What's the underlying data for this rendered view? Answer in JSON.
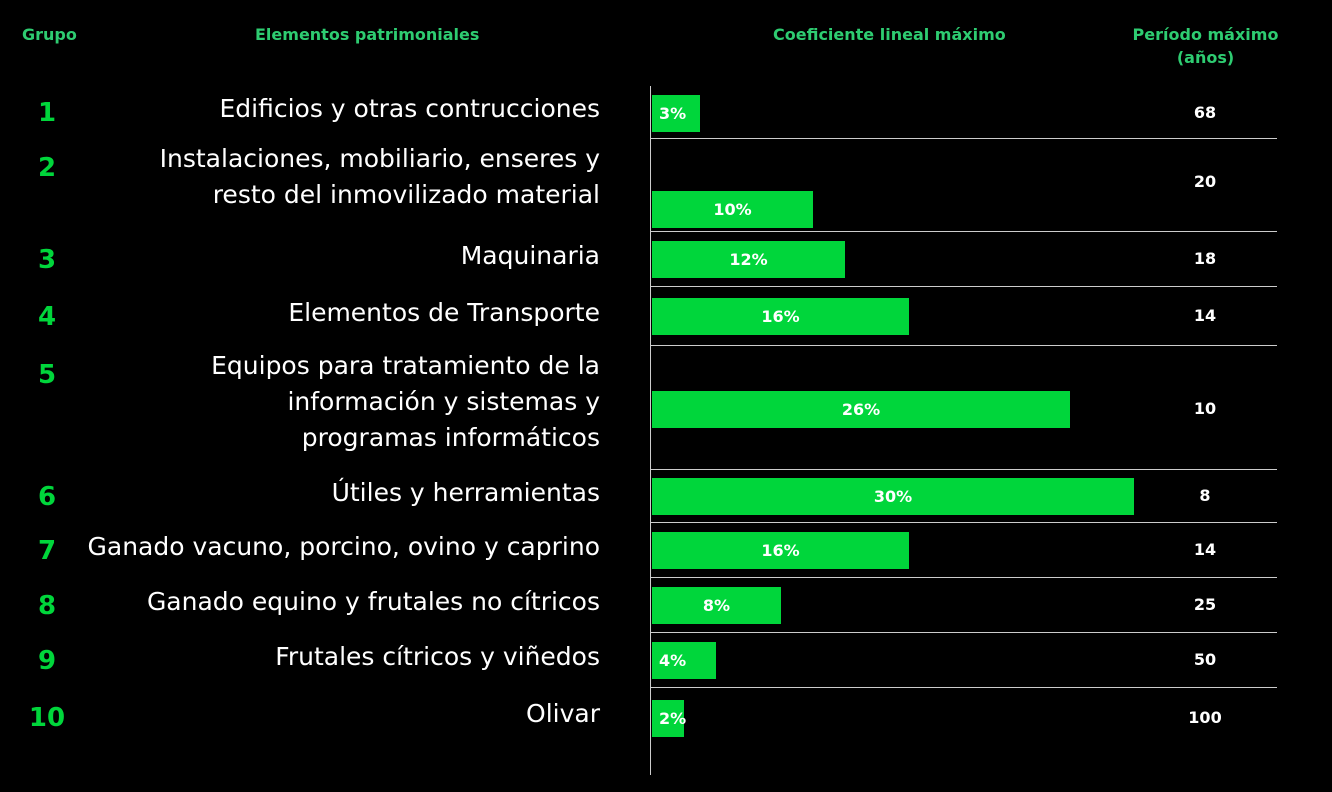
{
  "headers": {
    "group": "Grupo",
    "elements": "Elementos patrimoniales",
    "coefficient": "Coeficiente lineal máximo",
    "period": "Período máximo\n(años)"
  },
  "colors": {
    "background": "#000000",
    "accent": "#00d63b",
    "header_text": "#2ecc71",
    "text": "#ffffff",
    "separator": "#cccccc"
  },
  "rows": [
    {
      "group": "1",
      "lines": [
        "Edificios y otras contrucciones"
      ],
      "coef_label": "3%",
      "period": "68"
    },
    {
      "group": "2",
      "lines": [
        "Instalaciones, mobiliario, enseres y",
        "resto del inmovilizado material"
      ],
      "coef_label": "10%",
      "period": "20"
    },
    {
      "group": "3",
      "lines": [
        "Maquinaria"
      ],
      "coef_label": "12%",
      "period": "18"
    },
    {
      "group": "4",
      "lines": [
        "Elementos de Transporte"
      ],
      "coef_label": "16%",
      "period": "14"
    },
    {
      "group": "5",
      "lines": [
        "Equipos para tratamiento de la",
        "información y sistemas y",
        "programas informáticos"
      ],
      "coef_label": "26%",
      "period": "10"
    },
    {
      "group": "6",
      "lines": [
        "Útiles y herramientas"
      ],
      "coef_label": "30%",
      "period": "8"
    },
    {
      "group": "7",
      "lines": [
        "Ganado vacuno, porcino, ovino y caprino"
      ],
      "coef_label": "16%",
      "period": "14"
    },
    {
      "group": "8",
      "lines": [
        "Ganado equino y frutales no cítricos"
      ],
      "coef_label": "8%",
      "period": "25"
    },
    {
      "group": "9",
      "lines": [
        "Frutales cítricos y viñedos"
      ],
      "coef_label": "4%",
      "period": "50"
    },
    {
      "group": "10",
      "lines": [
        "Olivar"
      ],
      "coef_label": "2%",
      "period": "100"
    }
  ],
  "chart_data": {
    "type": "bar",
    "orientation": "horizontal",
    "categories": [
      "Edificios y otras contrucciones",
      "Instalaciones, mobiliario, enseres y resto del inmovilizado material",
      "Maquinaria",
      "Elementos de Transporte",
      "Equipos para tratamiento de la información y sistemas y programas informáticos",
      "Útiles y herramientas",
      "Ganado vacuno, porcino, ovino y caprino",
      "Ganado equino y frutales no cítricos",
      "Frutales cítricos y viñedos",
      "Olivar"
    ],
    "values": [
      3,
      10,
      12,
      16,
      26,
      30,
      16,
      8,
      4,
      2
    ],
    "unit": "%",
    "xlim": [
      0,
      30
    ],
    "grid": false,
    "legend": "none"
  }
}
